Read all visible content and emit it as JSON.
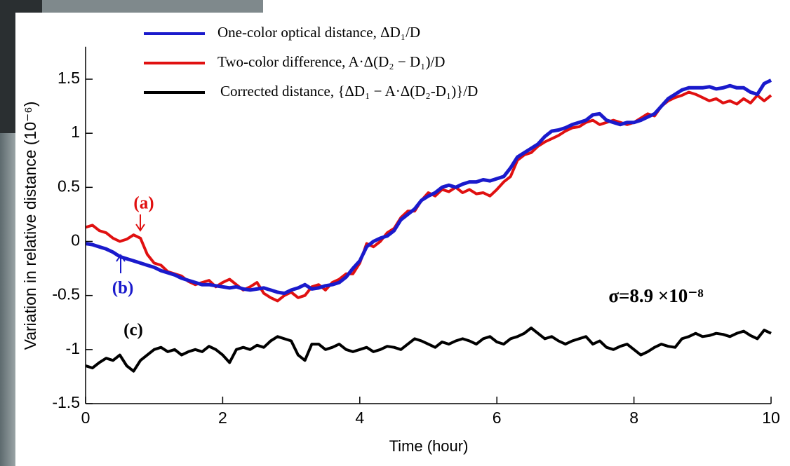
{
  "chart_data": {
    "type": "line",
    "xlabel": "Time (hour)",
    "ylabel": "Variation in relative distance (10⁻⁶)",
    "xlim": [
      0,
      10
    ],
    "ylim": [
      -1.5,
      1.8
    ],
    "xticks": [
      0,
      2,
      4,
      6,
      8,
      10
    ],
    "yticks": [
      -1.5,
      -1,
      -0.5,
      0,
      0.5,
      1,
      1.5
    ],
    "legend": "upper left",
    "x": [
      0,
      0.1,
      0.2,
      0.3,
      0.4,
      0.5,
      0.6,
      0.7,
      0.8,
      0.9,
      1.0,
      1.1,
      1.2,
      1.3,
      1.4,
      1.5,
      1.6,
      1.7,
      1.8,
      1.9,
      2.0,
      2.1,
      2.2,
      2.3,
      2.4,
      2.5,
      2.6,
      2.7,
      2.8,
      2.9,
      3.0,
      3.1,
      3.2,
      3.3,
      3.4,
      3.5,
      3.6,
      3.7,
      3.8,
      3.9,
      4.0,
      4.1,
      4.2,
      4.3,
      4.4,
      4.5,
      4.6,
      4.7,
      4.8,
      4.9,
      5.0,
      5.1,
      5.2,
      5.3,
      5.4,
      5.5,
      5.6,
      5.7,
      5.8,
      5.9,
      6.0,
      6.1,
      6.2,
      6.3,
      6.4,
      6.5,
      6.6,
      6.7,
      6.8,
      6.9,
      7.0,
      7.1,
      7.2,
      7.3,
      7.4,
      7.5,
      7.6,
      7.7,
      7.8,
      7.9,
      8.0,
      8.1,
      8.2,
      8.3,
      8.4,
      8.5,
      8.6,
      8.7,
      8.8,
      8.9,
      9.0,
      9.1,
      9.2,
      9.3,
      9.4,
      9.5,
      9.6,
      9.7,
      9.8,
      9.9,
      10.0
    ],
    "series": [
      {
        "name": "One-color optical distance, ΔD₁/D",
        "color": "#1a1acc",
        "values": [
          -0.02,
          -0.03,
          -0.05,
          -0.07,
          -0.1,
          -0.14,
          -0.16,
          -0.18,
          -0.2,
          -0.22,
          -0.24,
          -0.27,
          -0.29,
          -0.31,
          -0.34,
          -0.36,
          -0.38,
          -0.4,
          -0.4,
          -0.41,
          -0.42,
          -0.43,
          -0.42,
          -0.44,
          -0.45,
          -0.44,
          -0.43,
          -0.45,
          -0.47,
          -0.48,
          -0.45,
          -0.43,
          -0.4,
          -0.44,
          -0.43,
          -0.41,
          -0.4,
          -0.38,
          -0.33,
          -0.25,
          -0.18,
          -0.05,
          0.0,
          0.03,
          0.05,
          0.1,
          0.2,
          0.25,
          0.3,
          0.38,
          0.42,
          0.45,
          0.5,
          0.52,
          0.5,
          0.53,
          0.55,
          0.55,
          0.57,
          0.56,
          0.58,
          0.6,
          0.68,
          0.78,
          0.82,
          0.86,
          0.9,
          0.97,
          1.02,
          1.03,
          1.05,
          1.08,
          1.1,
          1.12,
          1.17,
          1.18,
          1.12,
          1.1,
          1.08,
          1.1,
          1.1,
          1.12,
          1.15,
          1.18,
          1.25,
          1.32,
          1.36,
          1.4,
          1.42,
          1.42,
          1.42,
          1.43,
          1.41,
          1.42,
          1.44,
          1.42,
          1.42,
          1.38,
          1.36,
          1.46,
          1.49
        ]
      },
      {
        "name": "Two-color difference, A·Δ(D₂ − D₁)/D",
        "color": "#e01010",
        "values": [
          0.13,
          0.15,
          0.1,
          0.08,
          0.03,
          0.0,
          0.02,
          0.06,
          0.03,
          -0.12,
          -0.2,
          -0.22,
          -0.28,
          -0.3,
          -0.32,
          -0.37,
          -0.4,
          -0.38,
          -0.36,
          -0.42,
          -0.38,
          -0.35,
          -0.4,
          -0.45,
          -0.42,
          -0.38,
          -0.48,
          -0.52,
          -0.55,
          -0.5,
          -0.47,
          -0.52,
          -0.5,
          -0.42,
          -0.4,
          -0.45,
          -0.38,
          -0.35,
          -0.3,
          -0.3,
          -0.2,
          -0.02,
          -0.05,
          0.0,
          0.08,
          0.12,
          0.22,
          0.28,
          0.28,
          0.38,
          0.45,
          0.42,
          0.48,
          0.46,
          0.5,
          0.45,
          0.48,
          0.44,
          0.45,
          0.42,
          0.48,
          0.55,
          0.6,
          0.75,
          0.8,
          0.82,
          0.88,
          0.92,
          0.95,
          0.98,
          1.02,
          1.05,
          1.06,
          1.1,
          1.12,
          1.08,
          1.1,
          1.12,
          1.1,
          1.08,
          1.1,
          1.14,
          1.18,
          1.16,
          1.25,
          1.3,
          1.33,
          1.35,
          1.38,
          1.36,
          1.33,
          1.3,
          1.32,
          1.28,
          1.3,
          1.27,
          1.32,
          1.28,
          1.35,
          1.3,
          1.35
        ]
      },
      {
        "name": "Corrected distance, {ΔD₁ − A·Δ(D₂-D₁)}/D",
        "color": "#000000",
        "values": [
          -1.15,
          -1.17,
          -1.12,
          -1.08,
          -1.1,
          -1.05,
          -1.15,
          -1.2,
          -1.1,
          -1.05,
          -1.0,
          -0.98,
          -1.02,
          -1.0,
          -1.05,
          -1.02,
          -1.0,
          -1.02,
          -0.97,
          -1.0,
          -1.05,
          -1.12,
          -1.0,
          -0.98,
          -1.0,
          -0.96,
          -0.98,
          -0.92,
          -0.88,
          -0.9,
          -0.92,
          -1.05,
          -1.1,
          -0.95,
          -0.95,
          -1.0,
          -0.98,
          -0.95,
          -1.0,
          -1.02,
          -1.0,
          -0.98,
          -1.02,
          -1.0,
          -0.97,
          -0.98,
          -1.0,
          -0.95,
          -0.9,
          -0.92,
          -0.95,
          -0.98,
          -0.93,
          -0.95,
          -0.92,
          -0.9,
          -0.92,
          -0.95,
          -0.9,
          -0.88,
          -0.93,
          -0.95,
          -0.9,
          -0.88,
          -0.85,
          -0.8,
          -0.85,
          -0.9,
          -0.88,
          -0.92,
          -0.95,
          -0.92,
          -0.9,
          -0.88,
          -0.95,
          -0.92,
          -0.98,
          -1.0,
          -0.97,
          -0.95,
          -1.0,
          -1.05,
          -1.02,
          -0.98,
          -0.95,
          -0.97,
          -0.98,
          -0.9,
          -0.88,
          -0.85,
          -0.88,
          -0.87,
          -0.85,
          -0.86,
          -0.88,
          -0.85,
          -0.83,
          -0.87,
          -0.9,
          -0.82,
          -0.85
        ]
      }
    ],
    "annotations": [
      {
        "text": "(a)",
        "color": "#e01010"
      },
      {
        "text": "(b)",
        "color": "#1a1acc"
      },
      {
        "text": "(c)",
        "color": "#000000"
      },
      {
        "text": "σ=8.9 ×10⁻⁸",
        "color": "#000000"
      }
    ]
  }
}
